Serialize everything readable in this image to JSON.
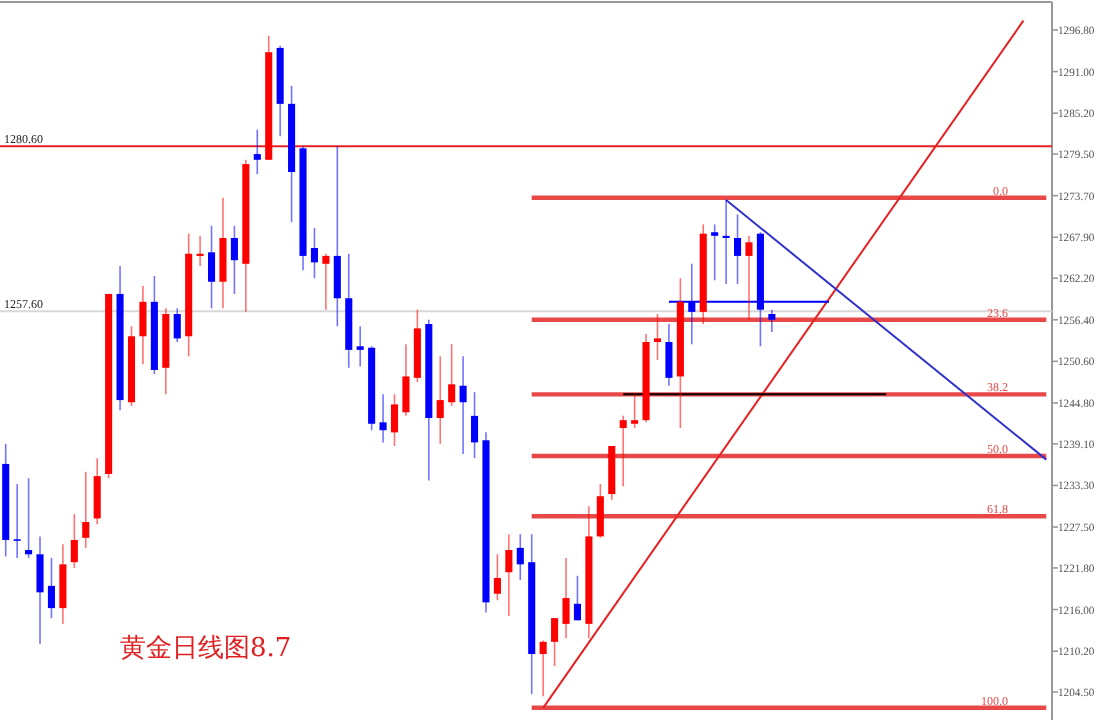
{
  "chart_data": {
    "type": "candlestick",
    "categories": [
      null,
      null,
      null,
      null,
      null,
      null,
      null,
      null,
      null,
      null,
      null,
      null,
      null,
      null,
      null,
      null,
      null,
      null,
      null,
      null,
      null,
      null,
      null,
      null,
      null,
      null,
      null,
      null,
      null,
      null,
      null,
      null,
      null,
      null,
      null,
      null,
      null,
      null,
      null,
      null,
      null,
      null,
      null,
      null,
      null,
      null,
      null,
      null,
      null,
      null,
      null,
      null,
      null,
      null,
      null,
      null,
      null,
      null,
      null,
      null,
      null,
      null,
      null,
      null,
      null,
      null,
      null,
      null,
      null,
      null,
      null,
      null,
      null,
      null,
      null,
      null,
      null,
      null,
      null,
      null,
      null,
      null,
      null,
      null,
      null,
      null,
      null,
      null,
      null,
      null,
      null,
      null
    ],
    "ohlc": [
      [
        1236.3,
        1239.1,
        1223.4,
        1225.7
      ],
      [
        1225.8,
        1233.5,
        1223.2,
        1225.6
      ],
      [
        1224.3,
        1234.3,
        1223.2,
        1223.7
      ],
      [
        1223.7,
        1226.2,
        1211.2,
        1218.4
      ],
      [
        1219.3,
        1223.2,
        1214.8,
        1216.2
      ],
      [
        1216.2,
        1225.1,
        1214.0,
        1222.3
      ],
      [
        1222.6,
        1229.3,
        1221.8,
        1225.7
      ],
      [
        1226.0,
        1235.2,
        1224.6,
        1228.2
      ],
      [
        1228.7,
        1237.1,
        1227.9,
        1234.6
      ],
      [
        1234.9,
        1260.0,
        1234.3,
        1260.0
      ],
      [
        1260.0,
        1263.9,
        1243.8,
        1245.2
      ],
      [
        1244.9,
        1255.5,
        1244.4,
        1254.1
      ],
      [
        1254.1,
        1261.1,
        1250.2,
        1258.9
      ],
      [
        1258.9,
        1262.5,
        1248.8,
        1249.4
      ],
      [
        1249.7,
        1258.0,
        1246.0,
        1257.2
      ],
      [
        1257.2,
        1258.0,
        1253.3,
        1253.8
      ],
      [
        1254.1,
        1268.4,
        1251.3,
        1265.6
      ],
      [
        1265.3,
        1268.1,
        1263.9,
        1265.6
      ],
      [
        1265.8,
        1269.5,
        1258.0,
        1261.7
      ],
      [
        1261.7,
        1273.4,
        1258.0,
        1267.8
      ],
      [
        1267.8,
        1269.5,
        1260.0,
        1264.7
      ],
      [
        1264.2,
        1278.7,
        1257.5,
        1278.1
      ],
      [
        1279.5,
        1282.9,
        1276.7,
        1278.7
      ],
      [
        1278.7,
        1296.0,
        1278.7,
        1293.7
      ],
      [
        1294.3,
        1294.6,
        1282.0,
        1286.5
      ],
      [
        1286.5,
        1289.0,
        1270.0,
        1277.0
      ],
      [
        1280.3,
        1280.6,
        1263.3,
        1265.3
      ],
      [
        1266.4,
        1269.2,
        1262.2,
        1264.4
      ],
      [
        1264.2,
        1265.6,
        1257.8,
        1265.3
      ],
      [
        1265.3,
        1280.6,
        1255.5,
        1259.4
      ],
      [
        1259.4,
        1265.6,
        1249.7,
        1252.2
      ],
      [
        1252.7,
        1255.5,
        1249.9,
        1252.2
      ],
      [
        1252.5,
        1252.7,
        1241.0,
        1241.9
      ],
      [
        1242.1,
        1246.0,
        1239.3,
        1241.0
      ],
      [
        1240.7,
        1246.0,
        1238.8,
        1244.6
      ],
      [
        1243.5,
        1253.0,
        1243.0,
        1248.5
      ],
      [
        1248.3,
        1257.8,
        1247.7,
        1255.2
      ],
      [
        1255.8,
        1256.4,
        1234.0,
        1242.7
      ],
      [
        1242.7,
        1251.3,
        1239.1,
        1245.2
      ],
      [
        1244.9,
        1253.0,
        1244.4,
        1247.4
      ],
      [
        1247.2,
        1251.3,
        1237.7,
        1244.9
      ],
      [
        1243.0,
        1246.3,
        1237.1,
        1239.3
      ],
      [
        1239.6,
        1240.7,
        1215.6,
        1217.0
      ],
      [
        1218.2,
        1223.7,
        1217.3,
        1220.4
      ],
      [
        1221.2,
        1226.5,
        1215.1,
        1224.3
      ],
      [
        1224.6,
        1226.5,
        1220.1,
        1222.3
      ],
      [
        1222.6,
        1226.5,
        1204.2,
        1209.8
      ],
      [
        1209.8,
        1211.7,
        1203.9,
        1211.5
      ],
      [
        1211.5,
        1214.8,
        1208.1,
        1214.8
      ],
      [
        1214.0,
        1223.2,
        1212.0,
        1217.6
      ],
      [
        1216.8,
        1220.7,
        1214.5,
        1214.5
      ],
      [
        1214.0,
        1230.4,
        1212.0,
        1226.2
      ],
      [
        1226.2,
        1233.5,
        1226.0,
        1231.8
      ],
      [
        1232.1,
        1238.8,
        1231.3,
        1238.8
      ],
      [
        1241.3,
        1243.0,
        1233.2,
        1242.4
      ],
      [
        1241.9,
        1246.0,
        1241.3,
        1242.4
      ],
      [
        1242.4,
        1254.4,
        1242.1,
        1253.3
      ],
      [
        1253.3,
        1257.2,
        1250.8,
        1253.8
      ],
      [
        1253.3,
        1255.8,
        1247.2,
        1248.3
      ],
      [
        1248.5,
        1262.2,
        1241.3,
        1258.9
      ],
      [
        1258.9,
        1264.2,
        1253.0,
        1257.5
      ],
      [
        1257.5,
        1269.7,
        1255.8,
        1268.4
      ],
      [
        1268.6,
        1269.7,
        1261.9,
        1268.1
      ],
      [
        1268.1,
        1273.1,
        1261.4,
        1267.8
      ],
      [
        1267.8,
        1271.1,
        1261.4,
        1265.3
      ],
      [
        1265.3,
        1268.1,
        1256.4,
        1267.2
      ],
      [
        1268.4,
        1268.6,
        1252.7,
        1257.8
      ],
      [
        1257.2,
        1257.8,
        1254.7,
        1256.4
      ],
      null,
      null,
      null,
      null,
      null,
      null,
      null,
      null,
      null,
      null,
      null,
      null,
      null,
      null,
      null,
      null,
      null,
      null,
      null,
      null,
      null,
      null,
      null,
      null
    ],
    "colors": [
      "#0000ff",
      "#0000ff",
      "#0000ff",
      "#0000ff",
      "#0000ff",
      "#ff0000",
      "#ff0000",
      "#ff0000",
      "#ff0000",
      "#ff0000",
      "#0000ff",
      "#ff0000",
      "#ff0000",
      "#0000ff",
      "#ff0000",
      "#0000ff",
      "#ff0000",
      "#ff0000",
      "#0000ff",
      "#ff0000",
      "#0000ff",
      "#ff0000",
      "#0000ff",
      "#ff0000",
      "#0000ff",
      "#0000ff",
      "#0000ff",
      "#0000ff",
      "#ff0000",
      "#0000ff",
      "#0000ff",
      "#0000ff",
      "#0000ff",
      "#0000ff",
      "#ff0000",
      "#ff0000",
      "#ff0000",
      "#0000ff",
      "#ff0000",
      "#ff0000",
      "#0000ff",
      "#0000ff",
      "#0000ff",
      "#ff0000",
      "#ff0000",
      "#0000ff",
      "#0000ff",
      "#ff0000",
      "#ff0000",
      "#ff0000",
      "#0000ff",
      "#ff0000",
      "#ff0000",
      "#ff0000",
      "#ff0000",
      "#ff0000",
      "#ff0000",
      "#ff0000",
      "#0000ff",
      "#ff0000",
      "#0000ff",
      "#ff0000",
      "#0000ff",
      "#0000ff",
      "#0000ff",
      "#ff0000",
      "#0000ff",
      "#0000ff",
      null,
      null,
      null,
      null,
      null,
      null,
      null,
      null,
      null,
      null,
      null,
      null,
      null,
      null,
      null,
      null,
      null,
      null,
      null,
      null,
      null,
      null,
      null,
      null
    ],
    "series": [
      {
        "type": "line",
        "name": "0.0",
        "color": "#e84848",
        "values": [
          null,
          null,
          null,
          null,
          null,
          null,
          null,
          null,
          null,
          null,
          null,
          null,
          null,
          null,
          null,
          null,
          null,
          null,
          null,
          null,
          null,
          null,
          null,
          null,
          null,
          null,
          null,
          null,
          null,
          null,
          null,
          null,
          null,
          null,
          null,
          null,
          null,
          null,
          null,
          null,
          null,
          null,
          null,
          null,
          null,
          null,
          1273.4,
          1273.4,
          1273.4,
          1273.4,
          1273.4,
          1273.4,
          1273.4,
          1273.4,
          1273.4,
          1273.4,
          1273.4,
          1273.4,
          1273.4,
          1273.4,
          1273.4,
          1273.4,
          1273.4,
          1273.4,
          1273.4,
          1273.4,
          1273.4,
          1273.4,
          1273.4,
          1273.4,
          1273.4,
          1273.4,
          1273.4,
          1273.4,
          1273.4,
          1273.4,
          1273.4,
          1273.4,
          1273.4,
          1273.4,
          1273.4,
          1273.4,
          1273.4,
          1273.4,
          1273.4,
          1273.4,
          1273.4,
          1273.4,
          1273.4,
          1273.4,
          1273.4,
          1273.4
        ]
      },
      {
        "type": "line",
        "name": "23.6",
        "color": "#e84848",
        "values": [
          null,
          null,
          null,
          null,
          null,
          null,
          null,
          null,
          null,
          null,
          null,
          null,
          null,
          null,
          null,
          null,
          null,
          null,
          null,
          null,
          null,
          null,
          null,
          null,
          null,
          null,
          null,
          null,
          null,
          null,
          null,
          null,
          null,
          null,
          null,
          null,
          null,
          null,
          null,
          null,
          null,
          null,
          null,
          null,
          null,
          null,
          1256.4,
          1256.4,
          1256.4,
          1256.4,
          1256.4,
          1256.4,
          1256.4,
          1256.4,
          1256.4,
          1256.4,
          1256.4,
          1256.4,
          1256.4,
          1256.4,
          1256.4,
          1256.4,
          1256.4,
          1256.4,
          1256.4,
          1256.4,
          1256.4,
          1256.4,
          1256.4,
          1256.4,
          1256.4,
          1256.4,
          1256.4,
          1256.4,
          1256.4,
          1256.4,
          1256.4,
          1256.4,
          1256.4,
          1256.4,
          1256.4,
          1256.4,
          1256.4,
          1256.4,
          1256.4,
          1256.4,
          1256.4,
          1256.4,
          1256.4,
          1256.4,
          1256.4,
          1256.4
        ]
      },
      {
        "type": "line",
        "name": "38.2",
        "color": "#e84848",
        "values": [
          null,
          null,
          null,
          null,
          null,
          null,
          null,
          null,
          null,
          null,
          null,
          null,
          null,
          null,
          null,
          null,
          null,
          null,
          null,
          null,
          null,
          null,
          null,
          null,
          null,
          null,
          null,
          null,
          null,
          null,
          null,
          null,
          null,
          null,
          null,
          null,
          null,
          null,
          null,
          null,
          null,
          null,
          null,
          null,
          null,
          null,
          1246.0,
          1246.0,
          1246.0,
          1246.0,
          1246.0,
          1246.0,
          1246.0,
          1246.0,
          1246.0,
          1246.0,
          1246.0,
          1246.0,
          1246.0,
          1246.0,
          1246.0,
          1246.0,
          1246.0,
          1246.0,
          1246.0,
          1246.0,
          1246.0,
          1246.0,
          1246.0,
          1246.0,
          1246.0,
          1246.0,
          1246.0,
          1246.0,
          1246.0,
          1246.0,
          1246.0,
          1246.0,
          1246.0,
          1246.0,
          1246.0,
          1246.0,
          1246.0,
          1246.0,
          1246.0,
          1246.0,
          1246.0,
          1246.0,
          1246.0,
          1246.0,
          1246.0,
          1246.0
        ]
      },
      {
        "type": "line",
        "name": "50.0",
        "color": "#e84848",
        "values": [
          null,
          null,
          null,
          null,
          null,
          null,
          null,
          null,
          null,
          null,
          null,
          null,
          null,
          null,
          null,
          null,
          null,
          null,
          null,
          null,
          null,
          null,
          null,
          null,
          null,
          null,
          null,
          null,
          null,
          null,
          null,
          null,
          null,
          null,
          null,
          null,
          null,
          null,
          null,
          null,
          null,
          null,
          null,
          null,
          null,
          null,
          1237.4,
          1237.4,
          1237.4,
          1237.4,
          1237.4,
          1237.4,
          1237.4,
          1237.4,
          1237.4,
          1237.4,
          1237.4,
          1237.4,
          1237.4,
          1237.4,
          1237.4,
          1237.4,
          1237.4,
          1237.4,
          1237.4,
          1237.4,
          1237.4,
          1237.4,
          1237.4,
          1237.4,
          1237.4,
          1237.4,
          1237.4,
          1237.4,
          1237.4,
          1237.4,
          1237.4,
          1237.4,
          1237.4,
          1237.4,
          1237.4,
          1237.4,
          1237.4,
          1237.4,
          1237.4,
          1237.4,
          1237.4,
          1237.4,
          1237.4,
          1237.4,
          1237.4,
          1237.4
        ]
      },
      {
        "type": "line",
        "name": "61.8",
        "color": "#e84848",
        "values": [
          null,
          null,
          null,
          null,
          null,
          null,
          null,
          null,
          null,
          null,
          null,
          null,
          null,
          null,
          null,
          null,
          null,
          null,
          null,
          null,
          null,
          null,
          null,
          null,
          null,
          null,
          null,
          null,
          null,
          null,
          null,
          null,
          null,
          null,
          null,
          null,
          null,
          null,
          null,
          null,
          null,
          null,
          null,
          null,
          null,
          null,
          1229.0,
          1229.0,
          1229.0,
          1229.0,
          1229.0,
          1229.0,
          1229.0,
          1229.0,
          1229.0,
          1229.0,
          1229.0,
          1229.0,
          1229.0,
          1229.0,
          1229.0,
          1229.0,
          1229.0,
          1229.0,
          1229.0,
          1229.0,
          1229.0,
          1229.0,
          1229.0,
          1229.0,
          1229.0,
          1229.0,
          1229.0,
          1229.0,
          1229.0,
          1229.0,
          1229.0,
          1229.0,
          1229.0,
          1229.0,
          1229.0,
          1229.0,
          1229.0,
          1229.0,
          1229.0,
          1229.0,
          1229.0,
          1229.0,
          1229.0,
          1229.0,
          1229.0,
          1229.0
        ]
      },
      {
        "type": "line",
        "name": "100.0",
        "color": "#e84848",
        "values": [
          null,
          null,
          null,
          null,
          null,
          null,
          null,
          null,
          null,
          null,
          null,
          null,
          null,
          null,
          null,
          null,
          null,
          null,
          null,
          null,
          null,
          null,
          null,
          null,
          null,
          null,
          null,
          null,
          null,
          null,
          null,
          null,
          null,
          null,
          null,
          null,
          null,
          null,
          null,
          null,
          null,
          null,
          null,
          null,
          null,
          null,
          1202.3,
          1202.3,
          1202.3,
          1202.3,
          1202.3,
          1202.3,
          1202.3,
          1202.3,
          1202.3,
          1202.3,
          1202.3,
          1202.3,
          1202.3,
          1202.3,
          1202.3,
          1202.3,
          1202.3,
          1202.3,
          1202.3,
          1202.3,
          1202.3,
          1202.3,
          1202.3,
          1202.3,
          1202.3,
          1202.3,
          1202.3,
          1202.3,
          1202.3,
          1202.3,
          1202.3,
          1202.3,
          1202.3,
          1202.3,
          1202.3,
          1202.3,
          1202.3,
          1202.3,
          1202.3,
          1202.3,
          1202.3,
          1202.3,
          1202.3,
          1202.3,
          1202.3,
          1202.3
        ]
      },
      {
        "type": "line",
        "color": "#e82020",
        "values": [
          null,
          null,
          null,
          null,
          null,
          null,
          null,
          null,
          null,
          null,
          null,
          null,
          null,
          null,
          null,
          null,
          null,
          null,
          null,
          null,
          null,
          null,
          null,
          null,
          null,
          null,
          null,
          null,
          null,
          null,
          null,
          null,
          null,
          null,
          null,
          null,
          null,
          null,
          null,
          null,
          null,
          null,
          null,
          null,
          null,
          null,
          null,
          1202.3,
          null,
          null,
          null,
          null,
          null,
          null,
          null,
          null,
          null,
          null,
          null,
          null,
          null,
          null,
          null,
          null,
          null,
          null,
          null,
          null,
          null,
          null,
          null,
          null,
          null,
          null,
          null,
          null,
          null,
          null,
          null,
          null,
          null,
          null,
          null,
          null,
          null,
          null,
          null,
          null,
          null,
          1298.1,
          null,
          null
        ]
      },
      {
        "type": "line",
        "color": "#3030cc",
        "values": [
          null,
          null,
          null,
          null,
          null,
          null,
          null,
          null,
          null,
          null,
          null,
          null,
          null,
          null,
          null,
          null,
          null,
          null,
          null,
          null,
          null,
          null,
          null,
          null,
          null,
          null,
          null,
          null,
          null,
          null,
          null,
          null,
          null,
          null,
          null,
          null,
          null,
          null,
          null,
          null,
          null,
          null,
          null,
          null,
          null,
          null,
          null,
          null,
          null,
          null,
          null,
          null,
          null,
          null,
          null,
          null,
          null,
          null,
          null,
          null,
          null,
          null,
          null,
          1273.1,
          null,
          null,
          null,
          null,
          null,
          null,
          null,
          null,
          null,
          null,
          null,
          null,
          null,
          null,
          null,
          null,
          null,
          null,
          null,
          null,
          null,
          null,
          null,
          null,
          null,
          null,
          null,
          1236.9
        ]
      },
      {
        "type": "line",
        "color": "#0000ff",
        "values": [
          null,
          null,
          null,
          null,
          null,
          null,
          null,
          null,
          null,
          null,
          null,
          null,
          null,
          null,
          null,
          null,
          null,
          null,
          null,
          null,
          null,
          null,
          null,
          null,
          null,
          null,
          null,
          null,
          null,
          null,
          null,
          null,
          null,
          null,
          null,
          null,
          null,
          null,
          null,
          null,
          null,
          null,
          null,
          null,
          null,
          null,
          null,
          null,
          null,
          null,
          null,
          null,
          null,
          null,
          null,
          null,
          null,
          null,
          1258.9,
          null,
          null,
          null,
          null,
          null,
          null,
          null,
          null,
          null,
          null,
          null,
          null,
          null,
          1258.9,
          null,
          null,
          null,
          null,
          null,
          null,
          null,
          null,
          null,
          null,
          null,
          null,
          null,
          null,
          null,
          null,
          null,
          null,
          null
        ]
      },
      {
        "type": "line",
        "color": "#000000",
        "values": [
          null,
          null,
          null,
          null,
          null,
          null,
          null,
          null,
          null,
          null,
          null,
          null,
          null,
          null,
          null,
          null,
          null,
          null,
          null,
          null,
          null,
          null,
          null,
          null,
          null,
          null,
          null,
          null,
          null,
          null,
          null,
          null,
          null,
          null,
          null,
          null,
          null,
          null,
          null,
          null,
          null,
          null,
          null,
          null,
          null,
          null,
          null,
          null,
          null,
          null,
          null,
          null,
          null,
          null,
          1246.0,
          null,
          null,
          null,
          null,
          null,
          null,
          null,
          null,
          null,
          null,
          null,
          null,
          null,
          null,
          null,
          null,
          null,
          null,
          null,
          null,
          null,
          null,
          1246.0,
          null,
          null,
          null,
          null,
          null,
          null,
          null,
          null,
          null,
          null,
          null,
          null,
          null,
          null
        ]
      }
    ],
    "ref_lines": [
      {
        "axis": "y",
        "value": 1280.6,
        "label": "1280.60",
        "color": "#e82020"
      },
      {
        "axis": "y",
        "value": 1257.6,
        "label": "1257.60",
        "color": "#d8d8d8"
      }
    ],
    "ylim": [
      1200.6,
      1300.7
    ],
    "yticks": [
      {
        "value": 1296.8,
        "label": "1296.80"
      },
      {
        "value": 1291.0,
        "label": "1291.00"
      },
      {
        "value": 1285.2,
        "label": "1285.20"
      },
      {
        "value": 1279.5,
        "label": "1279.50"
      },
      {
        "value": 1273.7,
        "label": "1273.70"
      },
      {
        "value": 1267.9,
        "label": "1267.90"
      },
      {
        "value": 1262.2,
        "label": "1262.20"
      },
      {
        "value": 1256.4,
        "label": "1256.40"
      },
      {
        "value": 1250.6,
        "label": "1250.60"
      },
      {
        "value": 1244.8,
        "label": "1244.80"
      },
      {
        "value": 1239.1,
        "label": "1239.10"
      },
      {
        "value": 1233.3,
        "label": "1233.30"
      },
      {
        "value": 1227.5,
        "label": "1227.50"
      },
      {
        "value": 1221.8,
        "label": "1221.80"
      },
      {
        "value": 1216.0,
        "label": "1216.00"
      },
      {
        "value": 1210.2,
        "label": "1210.20"
      },
      {
        "value": 1204.5,
        "label": "1204.50"
      }
    ],
    "tick_labels": "y",
    "annotations": [
      "黄金日线图8.7"
    ]
  }
}
